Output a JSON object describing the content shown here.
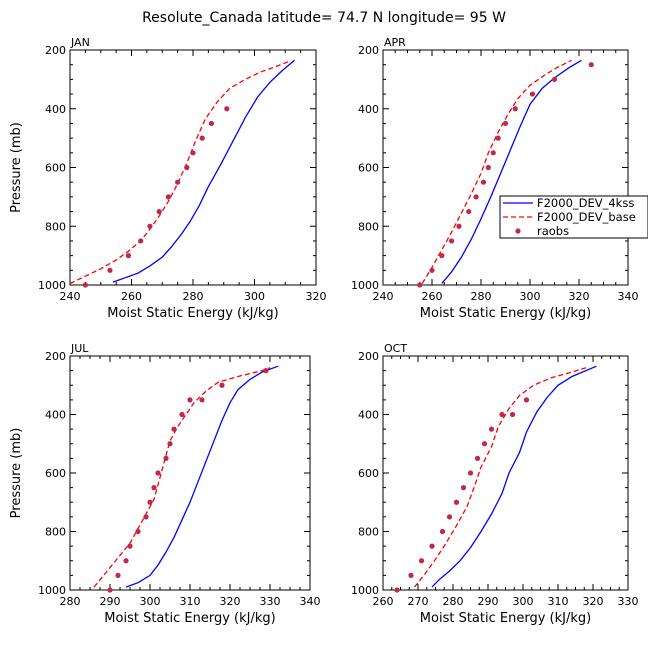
{
  "figure": {
    "title": "Resolute_Canada   latitude= 74.7 N longitude= 95 W"
  },
  "colors": {
    "series_4ks": "#0000ff",
    "series_base": "#ff0000",
    "raobs": "#c0284c"
  },
  "legend": {
    "items": [
      "F2000_DEV_4kss",
      "F2000_DEV_base",
      "raobs"
    ],
    "placement": "right of APR panel"
  },
  "chart_data": [
    {
      "type": "line",
      "panel": "JAN",
      "xlabel": "Moist Static Energy (kJ/kg)",
      "ylabel": "Pressure (mb)",
      "xlim": [
        240,
        320
      ],
      "xticks": [
        240,
        260,
        280,
        300,
        320
      ],
      "ylim": [
        1000,
        200
      ],
      "yticks": [
        200,
        400,
        600,
        800,
        1000
      ],
      "series": [
        {
          "name": "F2000_DEV_4kss",
          "style": "solid",
          "points": [
            [
              254,
              990
            ],
            [
              258,
              975
            ],
            [
              262,
              960
            ],
            [
              266,
              935
            ],
            [
              270,
              905
            ],
            [
              273,
              870
            ],
            [
              276,
              830
            ],
            [
              279,
              785
            ],
            [
              282,
              730
            ],
            [
              285,
              665
            ],
            [
              289,
              590
            ],
            [
              293,
              510
            ],
            [
              297,
              430
            ],
            [
              301,
              360
            ],
            [
              305,
              310
            ],
            [
              309,
              270
            ],
            [
              313,
              235
            ]
          ]
        },
        {
          "name": "F2000_DEV_base",
          "style": "dashed",
          "points": [
            [
              240,
              995
            ],
            [
              245,
              970
            ],
            [
              250,
              945
            ],
            [
              255,
              915
            ],
            [
              259,
              885
            ],
            [
              263,
              850
            ],
            [
              266,
              810
            ],
            [
              269,
              765
            ],
            [
              272,
              715
            ],
            [
              275,
              655
            ],
            [
              278,
              585
            ],
            [
              281,
              505
            ],
            [
              284,
              435
            ],
            [
              288,
              375
            ],
            [
              292,
              330
            ],
            [
              297,
              300
            ],
            [
              302,
              275
            ],
            [
              306,
              260
            ],
            [
              311,
              240
            ]
          ]
        },
        {
          "name": "raobs",
          "style": "markers",
          "points": [
            [
              245,
              1000
            ],
            [
              253,
              950
            ],
            [
              259,
              900
            ],
            [
              263,
              850
            ],
            [
              266,
              800
            ],
            [
              269,
              750
            ],
            [
              272,
              700
            ],
            [
              275,
              650
            ],
            [
              278,
              600
            ],
            [
              280,
              550
            ],
            [
              283,
              500
            ],
            [
              286,
              450
            ],
            [
              291,
              400
            ]
          ]
        }
      ]
    },
    {
      "type": "line",
      "panel": "APR",
      "xlabel": "Moist Static Energy (kJ/kg)",
      "ylabel": "",
      "xlim": [
        240,
        340
      ],
      "xticks": [
        240,
        260,
        280,
        300,
        320,
        340
      ],
      "ylim": [
        1000,
        200
      ],
      "yticks": [
        200,
        400,
        600,
        800,
        1000
      ],
      "series": [
        {
          "name": "F2000_DEV_4kss",
          "style": "solid",
          "points": [
            [
              264,
              995
            ],
            [
              268,
              955
            ],
            [
              272,
              905
            ],
            [
              276,
              845
            ],
            [
              280,
              775
            ],
            [
              284,
              700
            ],
            [
              288,
              620
            ],
            [
              292,
              540
            ],
            [
              296,
              460
            ],
            [
              300,
              385
            ],
            [
              305,
              330
            ],
            [
              310,
              295
            ],
            [
              316,
              260
            ],
            [
              321,
              235
            ]
          ]
        },
        {
          "name": "F2000_DEV_base",
          "style": "dashed",
          "points": [
            [
              256,
              995
            ],
            [
              260,
              940
            ],
            [
              264,
              880
            ],
            [
              268,
              820
            ],
            [
              272,
              755
            ],
            [
              276,
              690
            ],
            [
              280,
              620
            ],
            [
              283,
              550
            ],
            [
              287,
              480
            ],
            [
              291,
              420
            ],
            [
              295,
              365
            ],
            [
              300,
              320
            ],
            [
              306,
              285
            ],
            [
              311,
              260
            ],
            [
              317,
              235
            ]
          ]
        },
        {
          "name": "raobs",
          "style": "markers",
          "points": [
            [
              255,
              1000
            ],
            [
              260,
              950
            ],
            [
              264,
              900
            ],
            [
              268,
              850
            ],
            [
              271,
              800
            ],
            [
              275,
              750
            ],
            [
              278,
              700
            ],
            [
              281,
              650
            ],
            [
              283,
              600
            ],
            [
              285,
              550
            ],
            [
              287,
              500
            ],
            [
              290,
              450
            ],
            [
              294,
              400
            ],
            [
              301,
              350
            ],
            [
              310,
              300
            ],
            [
              325,
              250
            ]
          ]
        }
      ]
    },
    {
      "type": "line",
      "panel": "JUL",
      "xlabel": "Moist Static Energy (kJ/kg)",
      "ylabel": "Pressure (mb)",
      "xlim": [
        280,
        340
      ],
      "xticks": [
        280,
        290,
        300,
        310,
        320,
        330,
        340
      ],
      "ylim": [
        1000,
        200
      ],
      "yticks": [
        200,
        400,
        600,
        800,
        1000
      ],
      "series": [
        {
          "name": "F2000_DEV_4kss",
          "style": "solid",
          "points": [
            [
              294,
              990
            ],
            [
              297,
              975
            ],
            [
              300,
              950
            ],
            [
              302,
              915
            ],
            [
              304,
              870
            ],
            [
              306,
              820
            ],
            [
              308,
              760
            ],
            [
              310,
              700
            ],
            [
              312,
              630
            ],
            [
              314,
              560
            ],
            [
              316,
              490
            ],
            [
              318,
              420
            ],
            [
              320,
              360
            ],
            [
              322,
              315
            ],
            [
              325,
              280
            ],
            [
              328,
              255
            ],
            [
              332,
              235
            ]
          ]
        },
        {
          "name": "F2000_DEV_base",
          "style": "dashed",
          "points": [
            [
              286,
              990
            ],
            [
              289,
              940
            ],
            [
              292,
              890
            ],
            [
              295,
              840
            ],
            [
              297,
              790
            ],
            [
              299,
              740
            ],
            [
              301,
              690
            ],
            [
              302,
              640
            ],
            [
              303,
              590
            ],
            [
              304,
              540
            ],
            [
              305,
              490
            ],
            [
              307,
              440
            ],
            [
              309,
              400
            ],
            [
              311,
              360
            ],
            [
              314,
              320
            ],
            [
              317,
              290
            ],
            [
              322,
              270
            ],
            [
              328,
              250
            ],
            [
              330,
              240
            ]
          ]
        },
        {
          "name": "raobs",
          "style": "markers",
          "points": [
            [
              290,
              1000
            ],
            [
              292,
              950
            ],
            [
              294,
              900
            ],
            [
              295,
              850
            ],
            [
              297,
              800
            ],
            [
              299,
              750
            ],
            [
              300,
              700
            ],
            [
              301,
              650
            ],
            [
              302,
              600
            ],
            [
              304,
              550
            ],
            [
              305,
              500
            ],
            [
              306,
              450
            ],
            [
              308,
              400
            ],
            [
              310,
              350
            ],
            [
              313,
              350
            ],
            [
              318,
              300
            ],
            [
              329,
              250
            ]
          ]
        }
      ]
    },
    {
      "type": "line",
      "panel": "OCT",
      "xlabel": "Moist Static Energy (kJ/kg)",
      "ylabel": "",
      "xlim": [
        260,
        330
      ],
      "xticks": [
        260,
        270,
        280,
        290,
        300,
        310,
        320,
        330
      ],
      "ylim": [
        1000,
        200
      ],
      "yticks": [
        200,
        400,
        600,
        800,
        1000
      ],
      "series": [
        {
          "name": "F2000_DEV_4kss",
          "style": "solid",
          "points": [
            [
              274,
              990
            ],
            [
              276,
              965
            ],
            [
              279,
              935
            ],
            [
              282,
              900
            ],
            [
              285,
              855
            ],
            [
              288,
              800
            ],
            [
              291,
              740
            ],
            [
              294,
              670
            ],
            [
              296,
              600
            ],
            [
              299,
              530
            ],
            [
              301,
              460
            ],
            [
              304,
              390
            ],
            [
              307,
              340
            ],
            [
              310,
              300
            ],
            [
              314,
              270
            ],
            [
              321,
              235
            ]
          ]
        },
        {
          "name": "F2000_DEV_base",
          "style": "dashed",
          "points": [
            [
              269,
              990
            ],
            [
              272,
              945
            ],
            [
              275,
              895
            ],
            [
              278,
              840
            ],
            [
              281,
              780
            ],
            [
              284,
              715
            ],
            [
              286,
              650
            ],
            [
              288,
              580
            ],
            [
              291,
              510
            ],
            [
              293,
              440
            ],
            [
              296,
              380
            ],
            [
              299,
              335
            ],
            [
              303,
              300
            ],
            [
              308,
              275
            ],
            [
              314,
              255
            ],
            [
              318,
              240
            ]
          ]
        },
        {
          "name": "raobs",
          "style": "markers",
          "points": [
            [
              264,
              1000
            ],
            [
              268,
              950
            ],
            [
              271,
              900
            ],
            [
              274,
              850
            ],
            [
              277,
              800
            ],
            [
              279,
              750
            ],
            [
              281,
              700
            ],
            [
              283,
              650
            ],
            [
              285,
              600
            ],
            [
              287,
              550
            ],
            [
              289,
              500
            ],
            [
              291,
              450
            ],
            [
              294,
              400
            ],
            [
              297,
              400
            ],
            [
              301,
              350
            ]
          ]
        }
      ]
    }
  ]
}
